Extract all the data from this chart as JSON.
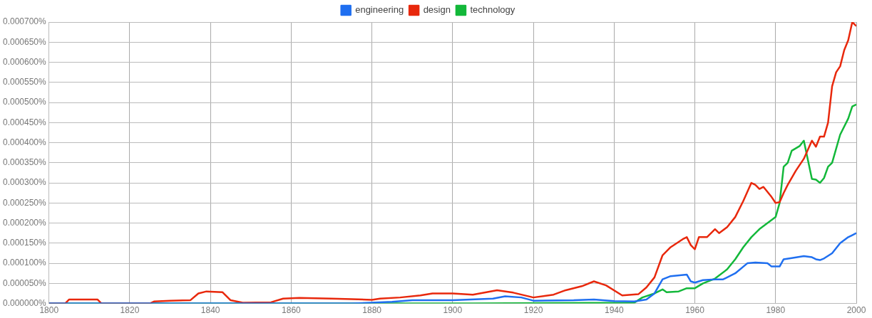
{
  "chart_data": {
    "type": "line",
    "legend": "top",
    "grid": true,
    "marker": "none",
    "line_style": "solid",
    "xlim": [
      1800,
      2000
    ],
    "xticks": [
      1800,
      1820,
      1840,
      1860,
      1880,
      1900,
      1920,
      1940,
      1960,
      1980,
      2000
    ],
    "ylim": [
      0,
      0.0007
    ],
    "yticks": [
      {
        "value": 0,
        "label": "0.000000%"
      },
      {
        "value": 5e-05,
        "label": "0.000050%"
      },
      {
        "value": 0.0001,
        "label": "0.000100%"
      },
      {
        "value": 0.00015,
        "label": "0.000150%"
      },
      {
        "value": 0.0002,
        "label": "0.000200%"
      },
      {
        "value": 0.00025,
        "label": "0.000250%"
      },
      {
        "value": 0.0003,
        "label": "0.000300%"
      },
      {
        "value": 0.00035,
        "label": "0.000350%"
      },
      {
        "value": 0.0004,
        "label": "0.000400%"
      },
      {
        "value": 0.00045,
        "label": "0.000450%"
      },
      {
        "value": 0.0005,
        "label": "0.000500%"
      },
      {
        "value": 0.00055,
        "label": "0.000550%"
      },
      {
        "value": 0.0006,
        "label": "0.000600%"
      },
      {
        "value": 0.00065,
        "label": "0.000650%"
      },
      {
        "value": 0.0007,
        "label": "0.000700%"
      }
    ],
    "series": [
      {
        "name": "engineering",
        "color": "#1f6ff0",
        "x": [
          1800,
          1875,
          1885,
          1890,
          1900,
          1910,
          1913,
          1917,
          1920,
          1930,
          1935,
          1940,
          1945,
          1948,
          1950,
          1952,
          1954,
          1958,
          1959,
          1960,
          1962,
          1965,
          1967,
          1970,
          1973,
          1975,
          1978,
          1979,
          1981,
          1982,
          1984,
          1987,
          1989,
          1990,
          1991,
          1992,
          1994,
          1996,
          1998,
          1999,
          2000
        ],
        "values": [
          0,
          0,
          4e-06,
          8e-06,
          8e-06,
          1.2e-05,
          1.8e-05,
          1.5e-05,
          7e-06,
          8e-06,
          1e-05,
          6e-06,
          5e-06,
          1e-05,
          2.5e-05,
          6e-05,
          6.8e-05,
          7.2e-05,
          5.5e-05,
          5.2e-05,
          5.8e-05,
          6e-05,
          6e-05,
          7.5e-05,
          0.0001,
          0.000102,
          0.0001,
          9.2e-05,
          9.2e-05,
          0.00011,
          0.000113,
          0.000118,
          0.000115,
          0.00011,
          0.000108,
          0.000112,
          0.000125,
          0.00015,
          0.000165,
          0.00017,
          0.000175
        ]
      },
      {
        "name": "design",
        "color": "#e8280c",
        "x": [
          1800,
          1804,
          1805,
          1812,
          1813,
          1825,
          1826,
          1830,
          1835,
          1837,
          1839,
          1843,
          1845,
          1848,
          1855,
          1858,
          1862,
          1866,
          1870,
          1875,
          1880,
          1882,
          1887,
          1892,
          1895,
          1900,
          1905,
          1911,
          1915,
          1920,
          1925,
          1928,
          1932,
          1935,
          1938,
          1942,
          1946,
          1948,
          1950,
          1952,
          1954,
          1957,
          1958,
          1959,
          1960,
          1961,
          1963,
          1965,
          1966,
          1968,
          1970,
          1972,
          1974,
          1975,
          1976,
          1977,
          1979,
          1980,
          1981,
          1982,
          1983,
          1985,
          1987,
          1989,
          1990,
          1991,
          1992,
          1993,
          1994,
          1995,
          1996,
          1997,
          1998,
          1999,
          2000
        ],
        "values": [
          0,
          0,
          1e-05,
          1e-05,
          0,
          0,
          5e-06,
          7e-06,
          8e-06,
          2.5e-05,
          3e-05,
          2.8e-05,
          8e-06,
          2e-06,
          3e-06,
          1.2e-05,
          1.4e-05,
          1.3e-05,
          1.2e-05,
          1.1e-05,
          9e-06,
          1.2e-05,
          1.5e-05,
          2e-05,
          2.5e-05,
          2.5e-05,
          2.2e-05,
          3.3e-05,
          2.7e-05,
          1.5e-05,
          2.2e-05,
          3.3e-05,
          4.3e-05,
          5.5e-05,
          4.5e-05,
          2e-05,
          2.3e-05,
          4e-05,
          6.5e-05,
          0.00012,
          0.00014,
          0.00016,
          0.000165,
          0.000145,
          0.000135,
          0.000165,
          0.000165,
          0.000185,
          0.000175,
          0.00019,
          0.000215,
          0.000255,
          0.0003,
          0.000295,
          0.000285,
          0.00029,
          0.000265,
          0.00025,
          0.000252,
          0.000275,
          0.000295,
          0.00033,
          0.00036,
          0.000405,
          0.00039,
          0.000415,
          0.000415,
          0.00045,
          0.00054,
          0.000575,
          0.00059,
          0.00063,
          0.000655,
          0.0007,
          0.00069
        ]
      },
      {
        "name": "technology",
        "color": "#13b83a",
        "x": [
          1800,
          1905,
          1945,
          1947,
          1950,
          1952,
          1953,
          1956,
          1958,
          1960,
          1962,
          1965,
          1968,
          1970,
          1972,
          1974,
          1976,
          1978,
          1980,
          1981,
          1982,
          1983,
          1984,
          1986,
          1987,
          1989,
          1990,
          1991,
          1992,
          1993,
          1994,
          1996,
          1998,
          1999,
          2000
        ],
        "values": [
          0,
          0,
          2e-06,
          1.5e-05,
          2.5e-05,
          3.5e-05,
          2.8e-05,
          3e-05,
          3.8e-05,
          3.8e-05,
          5e-05,
          6.2e-05,
          8.5e-05,
          0.00011,
          0.00014,
          0.000165,
          0.000185,
          0.0002,
          0.000215,
          0.00025,
          0.00034,
          0.00035,
          0.00038,
          0.000392,
          0.000405,
          0.00031,
          0.000308,
          0.0003,
          0.000312,
          0.00034,
          0.00035,
          0.00042,
          0.00046,
          0.00049,
          0.000495
        ]
      }
    ]
  }
}
